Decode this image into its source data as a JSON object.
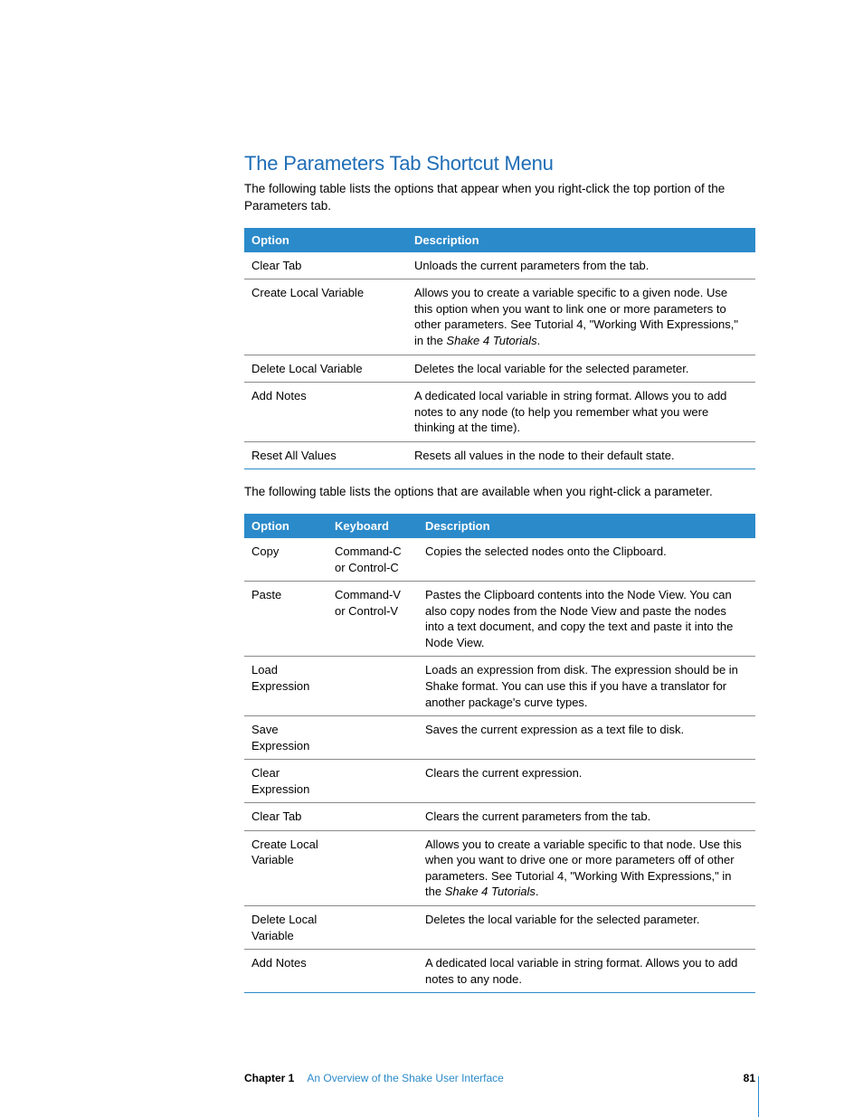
{
  "heading": "The Parameters Tab Shortcut Menu",
  "intro1": "The following table lists the options that appear when you right-click the top portion of the Parameters tab.",
  "intro2": "The following table lists the options that are available when you right-click a parameter.",
  "table1": {
    "columns": [
      "Option",
      "Description"
    ],
    "rows": [
      {
        "option": "Clear Tab",
        "desc": "Unloads the current parameters from the tab."
      },
      {
        "option": "Create Local Variable",
        "desc_pre": "Allows you to create a variable specific to a given node. Use this option when you want to link one or more parameters to other parameters. See Tutorial 4, \"Working With Expressions,\" in the ",
        "desc_em": "Shake 4 Tutorials",
        "desc_post": "."
      },
      {
        "option": "Delete Local Variable",
        "desc": "Deletes the local variable for the selected parameter."
      },
      {
        "option": "Add Notes",
        "desc": "A dedicated local variable in string format. Allows you to add notes to any node (to help you remember what you were thinking at the time)."
      },
      {
        "option": "Reset All Values",
        "desc": "Resets all values in the node to their default state."
      }
    ]
  },
  "table2": {
    "columns": [
      "Option",
      "Keyboard",
      "Description"
    ],
    "rows": [
      {
        "option": "Copy",
        "keyboard": "Command-C or Control-C",
        "desc": "Copies the selected nodes onto the Clipboard."
      },
      {
        "option": "Paste",
        "keyboard": "Command-V or Control-V",
        "desc": "Pastes the Clipboard contents into the Node View. You can also copy nodes from the Node View and paste the nodes into a text document, and copy the text and paste it into the Node View."
      },
      {
        "option": "Load Expression",
        "keyboard": "",
        "desc": "Loads an expression from disk. The expression should be in Shake format. You can use this if you have a translator for another package's curve types."
      },
      {
        "option": "Save Expression",
        "keyboard": "",
        "desc": "Saves the current expression as a text file to disk."
      },
      {
        "option": "Clear Expression",
        "keyboard": "",
        "desc": "Clears the current expression."
      },
      {
        "option": "Clear Tab",
        "keyboard": "",
        "desc": "Clears the current parameters from the tab."
      },
      {
        "option": "Create Local Variable",
        "keyboard": "",
        "desc_pre": "Allows you to create a variable specific to that node. Use this when you want to drive one or more parameters off of other parameters. See Tutorial 4, \"Working With Expressions,\" in the ",
        "desc_em": "Shake 4 Tutorials",
        "desc_post": "."
      },
      {
        "option": "Delete Local Variable",
        "keyboard": "",
        "desc": "Deletes the local variable for the selected parameter."
      },
      {
        "option": "Add Notes",
        "keyboard": "",
        "desc": "A dedicated local variable in string format. Allows you to add notes to any node."
      }
    ]
  },
  "footer": {
    "chapter": "Chapter 1",
    "title": "An Overview of the Shake User Interface",
    "page": "81"
  },
  "colors": {
    "heading": "#1e6db6",
    "header_bg": "#2b8aca",
    "header_text": "#ffffff",
    "border_bottom": "#2b8aca",
    "row_border": "#888888",
    "body_text": "#000000",
    "background": "#ffffff"
  }
}
